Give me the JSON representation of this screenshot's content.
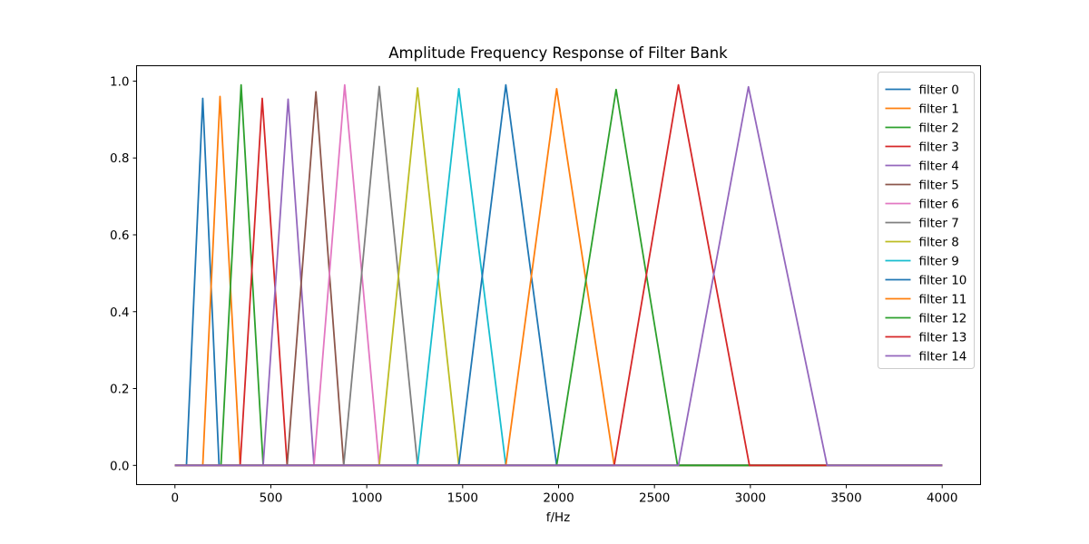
{
  "chart_data": {
    "type": "line",
    "title": "Amplitude Frequency Response of Filter Bank",
    "xlabel": "f/Hz",
    "ylabel": "",
    "xlim": [
      -200,
      4200
    ],
    "ylim": [
      -0.05,
      1.04
    ],
    "xticks": [
      0,
      500,
      1000,
      1500,
      2000,
      2500,
      3000,
      3500,
      4000
    ],
    "yticks": [
      0.0,
      0.2,
      0.4,
      0.6,
      0.8,
      1.0
    ],
    "ytick_labels": [
      "0.0",
      "0.2",
      "0.4",
      "0.6",
      "0.8",
      "1.0"
    ],
    "grid": false,
    "legend_position": "top-right",
    "colors": [
      "#1f77b4",
      "#ff7f0e",
      "#2ca02c",
      "#d62728",
      "#9467bd",
      "#8c564b",
      "#e377c2",
      "#7f7f7f",
      "#bcbd22",
      "#17becf"
    ],
    "x_range": [
      0,
      4000
    ],
    "series": [
      {
        "name": "filter 0",
        "points": [
          [
            60,
            0
          ],
          [
            145,
            0.955
          ],
          [
            230,
            0
          ]
        ]
      },
      {
        "name": "filter 1",
        "points": [
          [
            145,
            0
          ],
          [
            235,
            0.96
          ],
          [
            340,
            0
          ]
        ]
      },
      {
        "name": "filter 2",
        "points": [
          [
            240,
            0
          ],
          [
            345,
            0.99
          ],
          [
            460,
            0
          ]
        ]
      },
      {
        "name": "filter 3",
        "points": [
          [
            340,
            0
          ],
          [
            455,
            0.955
          ],
          [
            585,
            0
          ]
        ]
      },
      {
        "name": "filter 4",
        "points": [
          [
            460,
            0
          ],
          [
            590,
            0.953
          ],
          [
            725,
            0
          ]
        ]
      },
      {
        "name": "filter 5",
        "points": [
          [
            585,
            0
          ],
          [
            735,
            0.972
          ],
          [
            880,
            0
          ]
        ]
      },
      {
        "name": "filter 6",
        "points": [
          [
            725,
            0
          ],
          [
            885,
            0.99
          ],
          [
            1065,
            0
          ]
        ]
      },
      {
        "name": "filter 7",
        "points": [
          [
            880,
            0
          ],
          [
            1065,
            0.986
          ],
          [
            1265,
            0
          ]
        ]
      },
      {
        "name": "filter 8",
        "points": [
          [
            1065,
            0
          ],
          [
            1265,
            0.982
          ],
          [
            1480,
            0
          ]
        ]
      },
      {
        "name": "filter 9",
        "points": [
          [
            1265,
            0
          ],
          [
            1480,
            0.98
          ],
          [
            1725,
            0
          ]
        ]
      },
      {
        "name": "filter 10",
        "points": [
          [
            1480,
            0
          ],
          [
            1725,
            0.99
          ],
          [
            1990,
            0
          ]
        ]
      },
      {
        "name": "filter 11",
        "points": [
          [
            1725,
            0
          ],
          [
            1990,
            0.98
          ],
          [
            2290,
            0
          ]
        ]
      },
      {
        "name": "filter 12",
        "points": [
          [
            1990,
            0
          ],
          [
            2300,
            0.978
          ],
          [
            2620,
            0
          ]
        ]
      },
      {
        "name": "filter 13",
        "points": [
          [
            2290,
            0
          ],
          [
            2625,
            0.99
          ],
          [
            2995,
            0
          ]
        ]
      },
      {
        "name": "filter 14",
        "points": [
          [
            2625,
            0
          ],
          [
            2990,
            0.985
          ],
          [
            3400,
            0
          ]
        ]
      }
    ]
  }
}
